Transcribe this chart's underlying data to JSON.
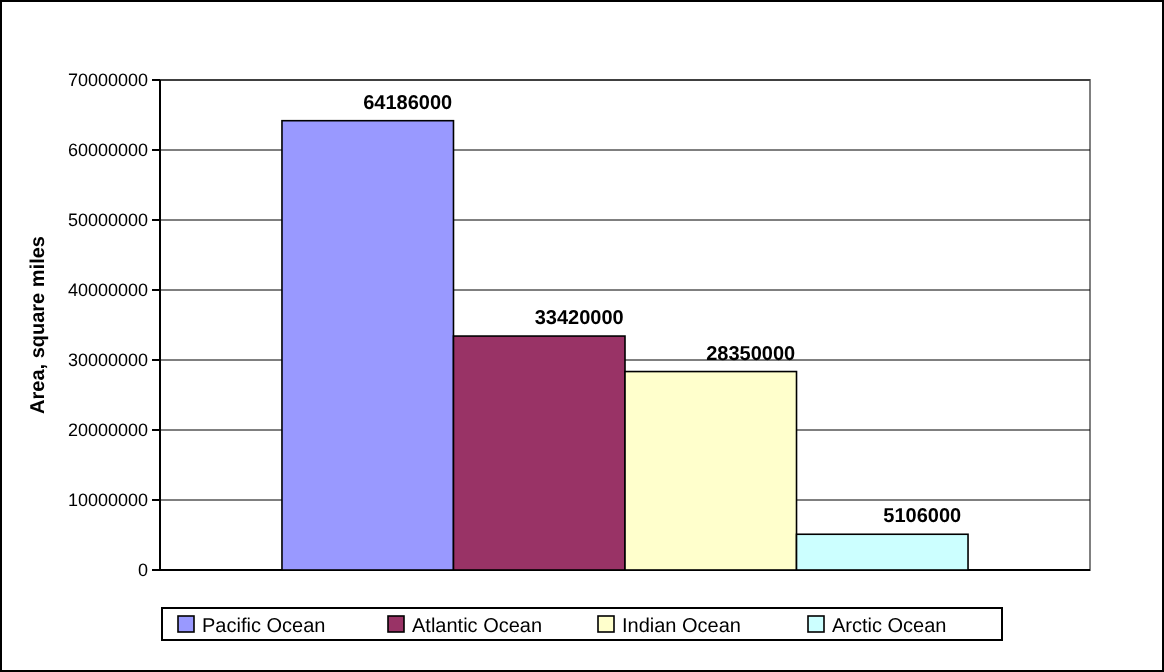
{
  "chart_data": {
    "type": "bar",
    "ylabel": "Area, square miles",
    "categories": [
      null
    ],
    "series": [
      {
        "name": "Pacific Ocean",
        "color": "#9999ff",
        "values": [
          64186000
        ]
      },
      {
        "name": "Atlantic Ocean",
        "color": "#993366",
        "values": [
          33420000
        ]
      },
      {
        "name": "Indian Ocean",
        "color": "#ffffcc",
        "values": [
          28350000
        ]
      },
      {
        "name": "Arctic Ocean",
        "color": "#ccffff",
        "values": [
          5106000
        ]
      }
    ],
    "ylim": [
      0,
      70000000
    ],
    "yticks": [
      0,
      10000000,
      20000000,
      30000000,
      40000000,
      50000000,
      60000000,
      70000000
    ],
    "grid": "y",
    "legend": "bottom",
    "data_labels": true
  }
}
